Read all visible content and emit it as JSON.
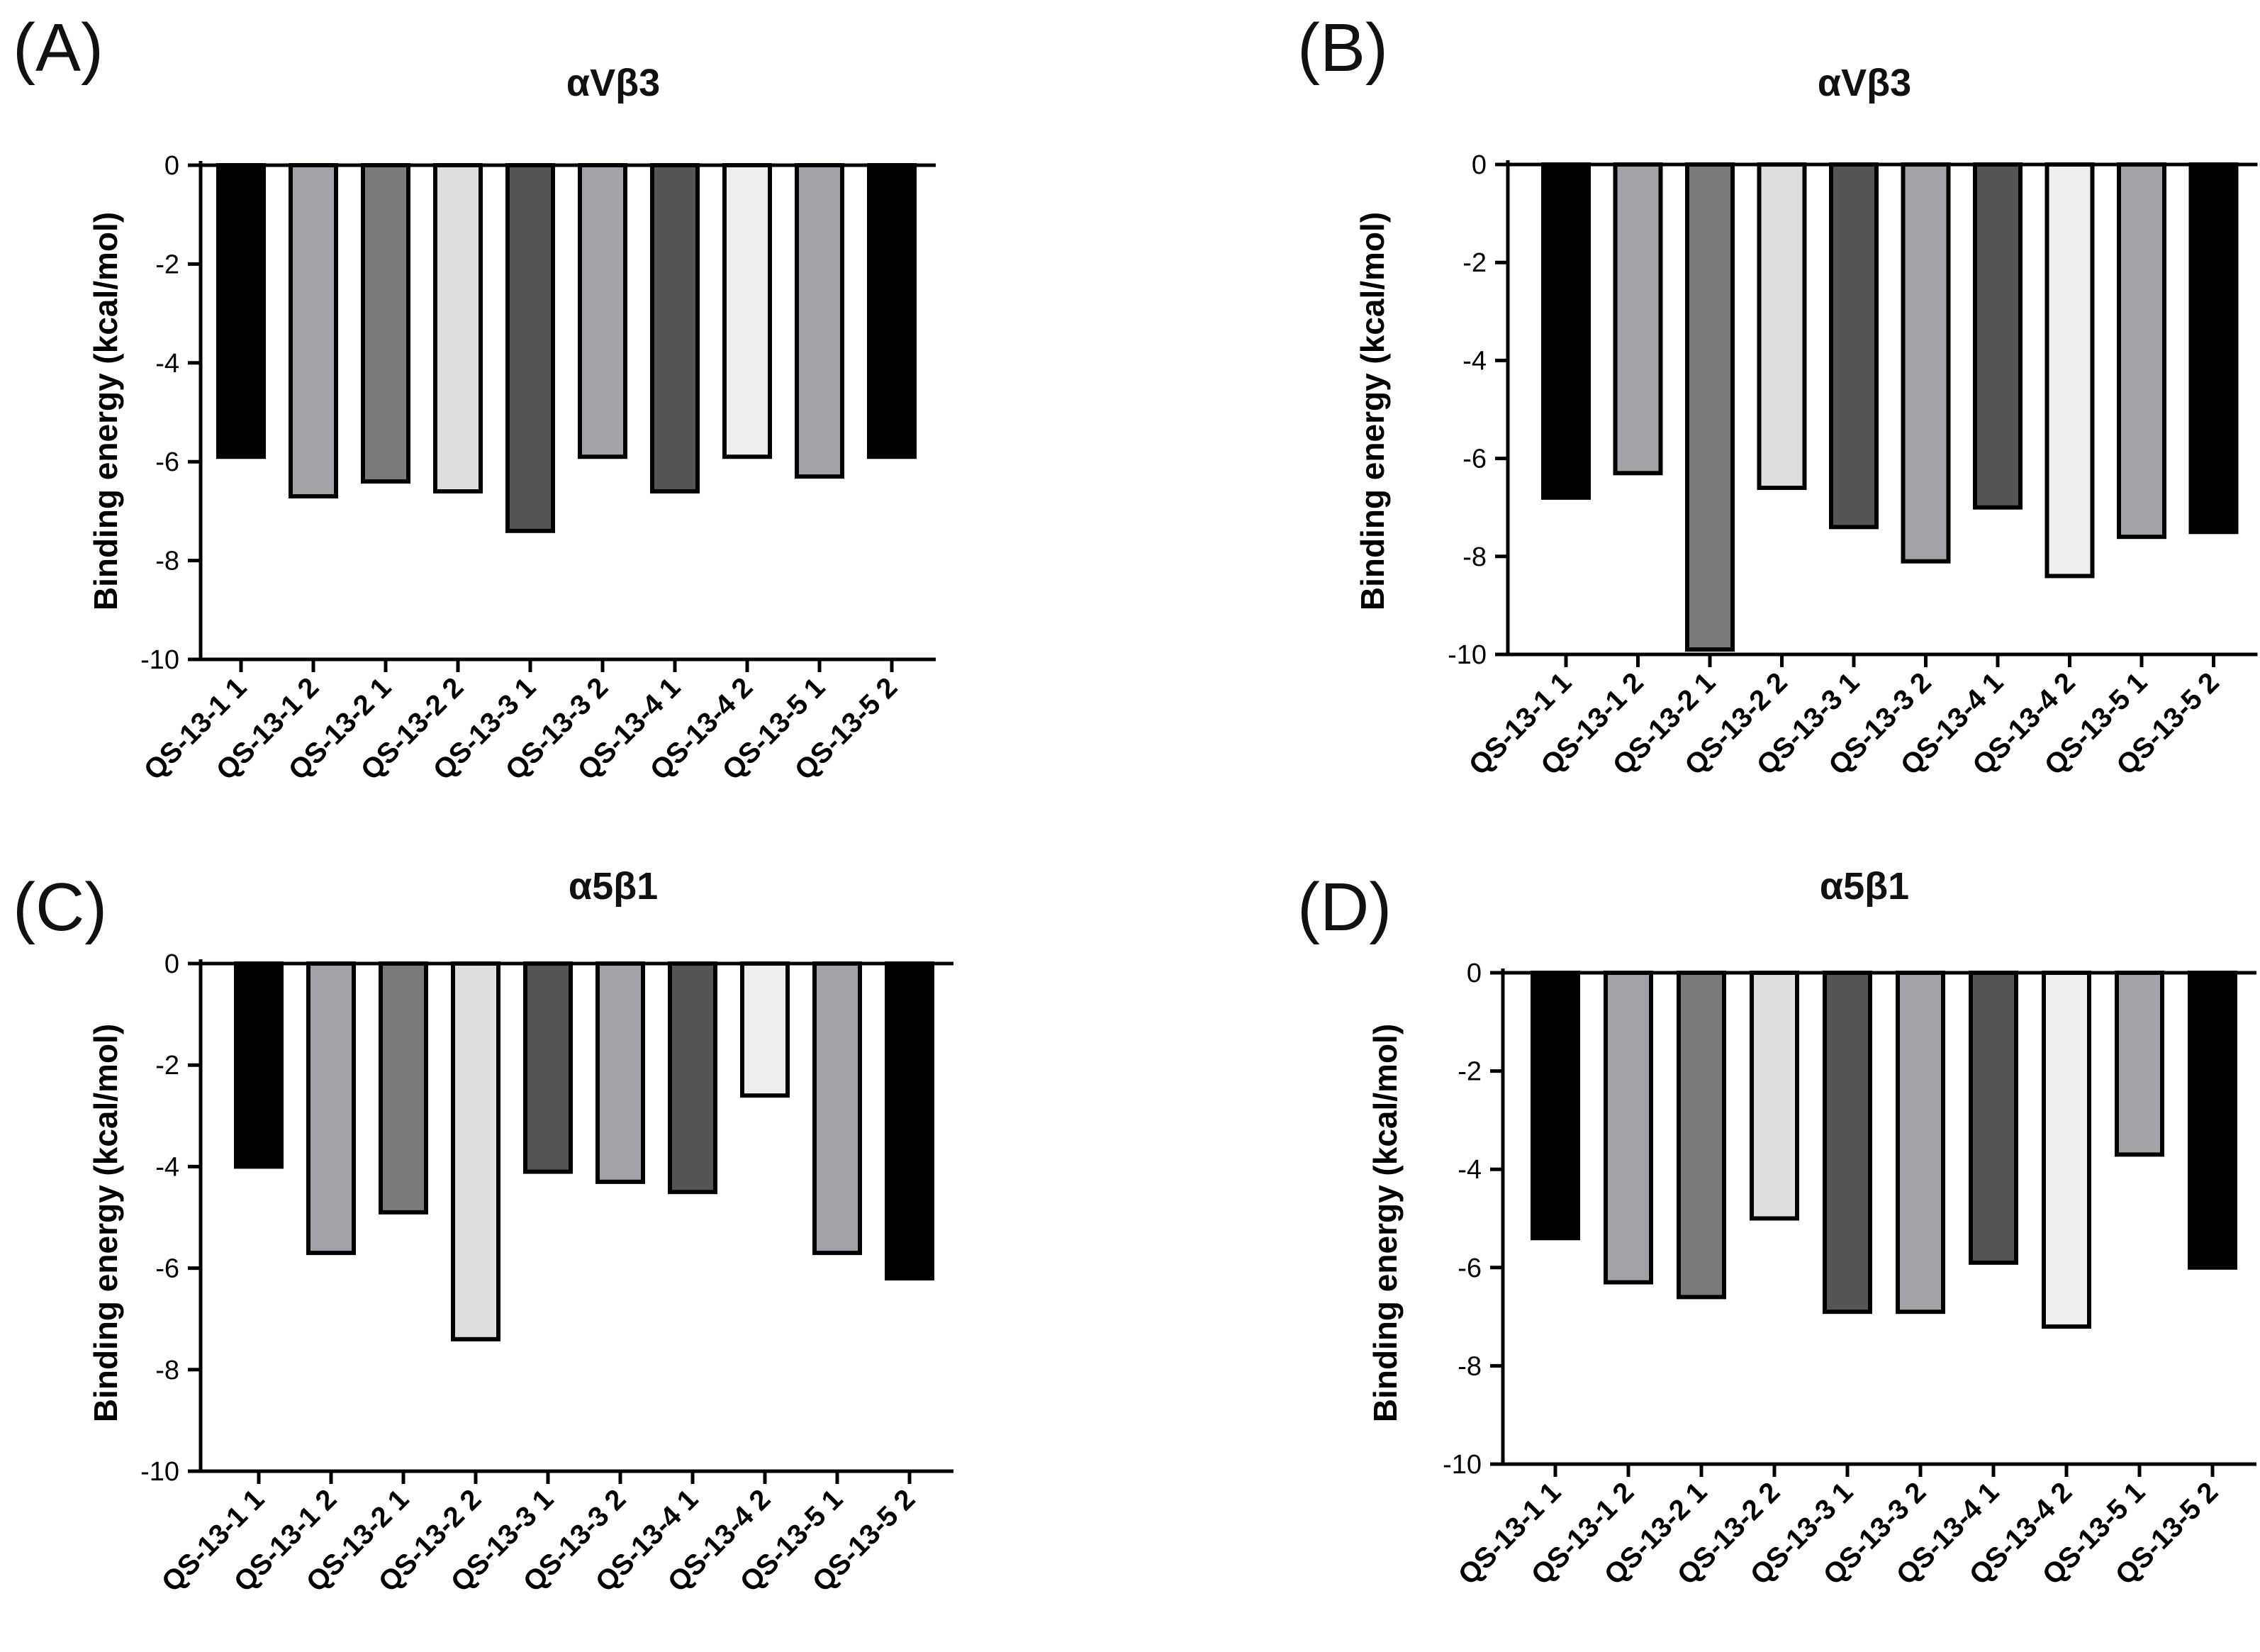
{
  "chart_data": [
    {
      "panel": "(A)",
      "type": "bar",
      "title": "αVβ3",
      "xlabel": "",
      "ylabel": "Binding energy (kcal/mol)",
      "ylim": [
        -10,
        0
      ],
      "yticks": [
        "0",
        "-2",
        "-4",
        "-6",
        "-8",
        "-10"
      ],
      "grid": false,
      "categories": [
        "QS-13-1 1",
        "QS-13-1 2",
        "QS-13-2 1",
        "QS-13-2 2",
        "QS-13-3 1",
        "QS-13-3 2",
        "QS-13-4 1",
        "QS-13-4 2",
        "QS-13-5 1",
        "QS-13-5 2"
      ],
      "values": [
        -5.9,
        -6.7,
        -6.4,
        -6.6,
        -7.4,
        -5.9,
        -6.6,
        -5.9,
        -6.3,
        -5.9
      ],
      "colors": [
        "#000000",
        "#a2a2a8",
        "#7a7a7a",
        "#dedede",
        "#555555",
        "#a2a2a8",
        "#555555",
        "#eeeeee",
        "#a2a2a8",
        "#000000"
      ]
    },
    {
      "panel": "(B)",
      "type": "bar",
      "title": "αVβ3",
      "xlabel": "",
      "ylabel": "Binding energy (kcal/mol)",
      "ylim": [
        -10,
        0
      ],
      "yticks": [
        "0",
        "-2",
        "-4",
        "-6",
        "-8",
        "-10"
      ],
      "grid": false,
      "categories": [
        "QS-13-1 1",
        "QS-13-1 2",
        "QS-13-2 1",
        "QS-13-2 2",
        "QS-13-3 1",
        "QS-13-3 2",
        "QS-13-4 1",
        "QS-13-4 2",
        "QS-13-5 1",
        "QS-13-5 2"
      ],
      "values": [
        -6.8,
        -6.3,
        -9.9,
        -6.6,
        -7.4,
        -8.1,
        -7.0,
        -8.4,
        -7.6,
        -7.5
      ],
      "colors": [
        "#000000",
        "#a2a2a8",
        "#7a7a7a",
        "#dedede",
        "#555555",
        "#a2a2a8",
        "#555555",
        "#eeeeee",
        "#a2a2a8",
        "#000000"
      ]
    },
    {
      "panel": "(C)",
      "type": "bar",
      "title": "α5β1",
      "xlabel": "",
      "ylabel": "Binding energy (kcal/mol)",
      "ylim": [
        -10,
        0
      ],
      "yticks": [
        "0",
        "-2",
        "-4",
        "-6",
        "-8",
        "-10"
      ],
      "grid": false,
      "categories": [
        "QS-13-1 1",
        "QS-13-1 2",
        "QS-13-2 1",
        "QS-13-2 2",
        "QS-13-3 1",
        "QS-13-3 2",
        "QS-13-4 1",
        "QS-13-4 2",
        "QS-13-5 1",
        "QS-13-5 2"
      ],
      "values": [
        -4.0,
        -5.7,
        -4.9,
        -7.4,
        -4.1,
        -4.3,
        -4.5,
        -2.6,
        -5.7,
        -6.2
      ],
      "colors": [
        "#000000",
        "#a2a2a8",
        "#7a7a7a",
        "#dedede",
        "#555555",
        "#a2a2a8",
        "#555555",
        "#eeeeee",
        "#a2a2a8",
        "#000000"
      ]
    },
    {
      "panel": "(D)",
      "type": "bar",
      "title": "α5β1",
      "xlabel": "",
      "ylabel": "Binding energy (kcal/mol)",
      "ylim": [
        -10,
        0
      ],
      "yticks": [
        "0",
        "-2",
        "-4",
        "-6",
        "-8",
        "-10"
      ],
      "grid": false,
      "categories": [
        "QS-13-1 1",
        "QS-13-1 2",
        "QS-13-2 1",
        "QS-13-2 2",
        "QS-13-3 1",
        "QS-13-3 2",
        "QS-13-4 1",
        "QS-13-4 2",
        "QS-13-5 1",
        "QS-13-5 2"
      ],
      "values": [
        -5.4,
        -6.3,
        -6.6,
        -5.0,
        -6.9,
        -6.9,
        -5.9,
        -7.2,
        -3.7,
        -6.0
      ],
      "colors": [
        "#000000",
        "#a2a2a8",
        "#7a7a7a",
        "#dedede",
        "#555555",
        "#a2a2a8",
        "#555555",
        "#eeeeee",
        "#a2a2a8",
        "#000000"
      ]
    }
  ]
}
